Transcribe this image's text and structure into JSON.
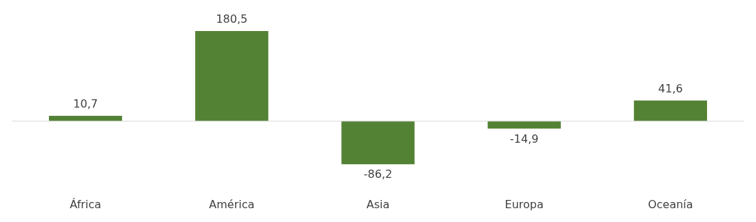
{
  "chart_data": {
    "type": "bar",
    "categories": [
      "África",
      "América",
      "Asia",
      "Europa",
      "Oceanía"
    ],
    "values": [
      10.7,
      180.5,
      -86.2,
      -14.9,
      41.6
    ],
    "value_labels": [
      "10,7",
      "180,5",
      "-86,2",
      "-14,9",
      "41,6"
    ],
    "color": "#548235"
  }
}
